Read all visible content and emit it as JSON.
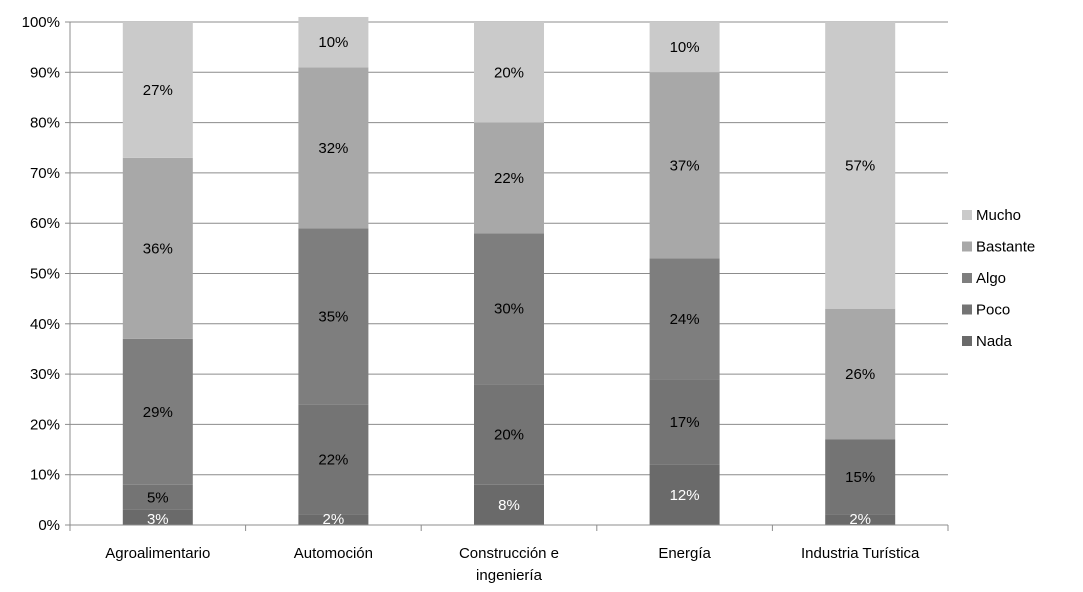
{
  "chart_data": {
    "type": "bar",
    "stacked": true,
    "title": "",
    "xlabel": "",
    "ylabel": "",
    "ylim": [
      0,
      100
    ],
    "yticks": [
      0,
      10,
      20,
      30,
      40,
      50,
      60,
      70,
      80,
      90,
      100
    ],
    "ytick_suffix": "%",
    "grid": true,
    "legend_position": "right",
    "categories": [
      "Agroalimentario",
      "Automoción",
      "Construcción e ingeniería",
      "Energía",
      "Industria Turística"
    ],
    "category_display_lines": [
      [
        "Agroalimentario"
      ],
      [
        "Automoción"
      ],
      [
        "Construcción e",
        "ingeniería"
      ],
      [
        "Energía"
      ],
      [
        "Industria Turística"
      ]
    ],
    "series": [
      {
        "name": "Nada",
        "color": "#6a6a6a",
        "label_color": "#ffffff",
        "values": [
          3,
          2,
          8,
          12,
          2
        ],
        "labels": [
          "3%",
          "2%",
          "8%",
          "12%",
          "2%"
        ]
      },
      {
        "name": "Poco",
        "color": "#747474",
        "label_color": "#000000",
        "values": [
          5,
          22,
          20,
          17,
          15
        ],
        "labels": [
          "5%",
          "22%",
          "20%",
          "17%",
          "15%"
        ]
      },
      {
        "name": "Algo",
        "color": "#7e7e7e",
        "label_color": "#000000",
        "values": [
          29,
          35,
          30,
          24,
          0
        ],
        "labels": [
          "29%",
          "35%",
          "30%",
          "24%",
          ""
        ]
      },
      {
        "name": "Bastante",
        "color": "#a8a8a8",
        "label_color": "#000000",
        "values": [
          36,
          32,
          22,
          37,
          26
        ],
        "labels": [
          "36%",
          "32%",
          "22%",
          "37%",
          "26%"
        ]
      },
      {
        "name": "Mucho",
        "color": "#cacaca",
        "label_color": "#000000",
        "values": [
          27,
          10,
          20,
          10,
          57
        ],
        "labels": [
          "27%",
          "10%",
          "20%",
          "10%",
          "57%"
        ]
      }
    ],
    "legend_order": [
      "Mucho",
      "Bastante",
      "Algo",
      "Poco",
      "Nada"
    ]
  }
}
